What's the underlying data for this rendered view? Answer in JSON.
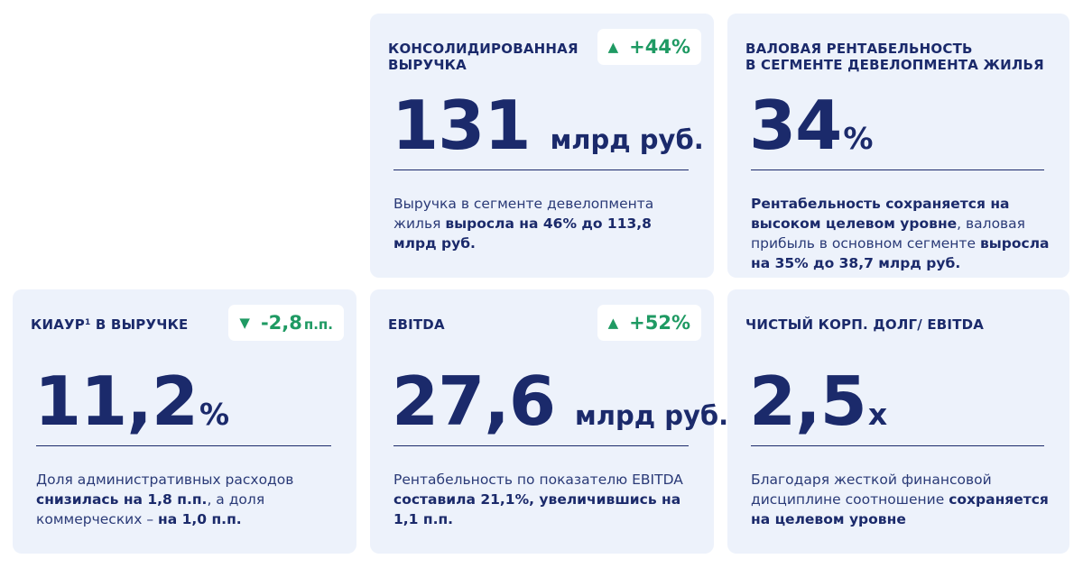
{
  "colors": {
    "card_bg": "#edf2fb",
    "text": "#1b2a6b",
    "positive": "#1f9a63",
    "badge_bg": "#ffffff"
  },
  "cards": {
    "revenue": {
      "title_l1": "КОНСОЛИДИРОВАННАЯ",
      "title_l2": "ВЫРУЧКА",
      "badge_icon": "triangle-up-icon",
      "badge_value": "+44%",
      "value": "131",
      "unit": "млрд руб.",
      "desc_t1": "Выручка в сегменте девелопмента жилья ",
      "desc_b1": "выросла на 46% до 113,8 млрд руб."
    },
    "margin": {
      "title_l1": "ВАЛОВАЯ РЕНТАБЕЛЬНОСТЬ",
      "title_l2": "В СЕГМЕНТЕ ДЕВЕЛОПМЕНТА ЖИЛЬЯ",
      "value": "34",
      "unit": "%",
      "desc_b1": "Рентабельность сохраняется на высоком целевом уровне",
      "desc_t1": ", валовая прибыль в основном сегменте ",
      "desc_b2": "выросла на 35% до 38,7 млрд руб."
    },
    "kiaur": {
      "title": "КИАУР",
      "title_sup": "1",
      "title_rest": " В ВЫРУЧКЕ",
      "badge_icon": "triangle-down-icon",
      "badge_value": "-2,8",
      "badge_unit": "п.п.",
      "value": "11,2",
      "unit": "%",
      "desc_t1": "Доля административных расходов ",
      "desc_b1": "снизилась на 1,8 п.п.",
      "desc_t2": ", а доля коммерческих – ",
      "desc_b2": "на 1,0 п.п."
    },
    "ebitda": {
      "title": "EBITDA",
      "badge_icon": "triangle-up-icon",
      "badge_value": "+52%",
      "value": "27,6",
      "unit": "млрд руб.",
      "desc_t1": "Рентабельность по показателю EBITDA ",
      "desc_b1": "составила 21,1%, увеличившись на 1,1 п.п."
    },
    "debt": {
      "title": "ЧИСТЫЙ КОРП. ДОЛГ/ EBITDA",
      "value": "2,5",
      "unit": "x",
      "desc_t1": "Благодаря жесткой финансовой дисциплине соотношение ",
      "desc_b1": "сохраняется на целевом уровне"
    }
  }
}
